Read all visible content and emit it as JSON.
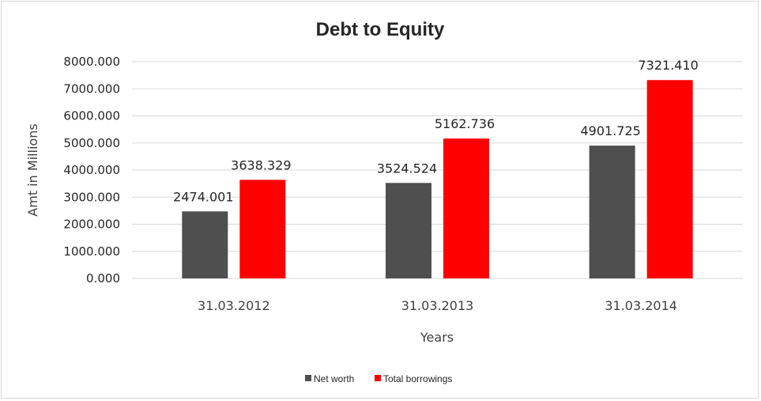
{
  "chart_data": {
    "type": "bar",
    "title": "Debt to Equity",
    "xlabel": "Years",
    "ylabel": "Amt in Millions",
    "categories": [
      "31.03.2012",
      "31.03.2013",
      "31.03.2014"
    ],
    "series": [
      {
        "name": "Net worth",
        "color": "#4f4f4f",
        "values": [
          2474.001,
          3524.524,
          4901.725
        ],
        "labels": [
          "2474.001",
          "3524.524",
          "4901.725"
        ]
      },
      {
        "name": "Total borrowings",
        "color": "#ff0000",
        "values": [
          3638.329,
          5162.736,
          7321.41
        ],
        "labels": [
          "3638.329",
          "5162.736",
          "7321.410"
        ]
      }
    ],
    "ylim": [
      0,
      8000
    ],
    "yticks": [
      0,
      1000,
      2000,
      3000,
      4000,
      5000,
      6000,
      7000,
      8000
    ],
    "ytick_labels": [
      "0.000",
      "1000.000",
      "2000.000",
      "3000.000",
      "4000.000",
      "5000.000",
      "6000.000",
      "7000.000",
      "8000.000"
    ],
    "grid": true,
    "legend_position": "bottom"
  }
}
